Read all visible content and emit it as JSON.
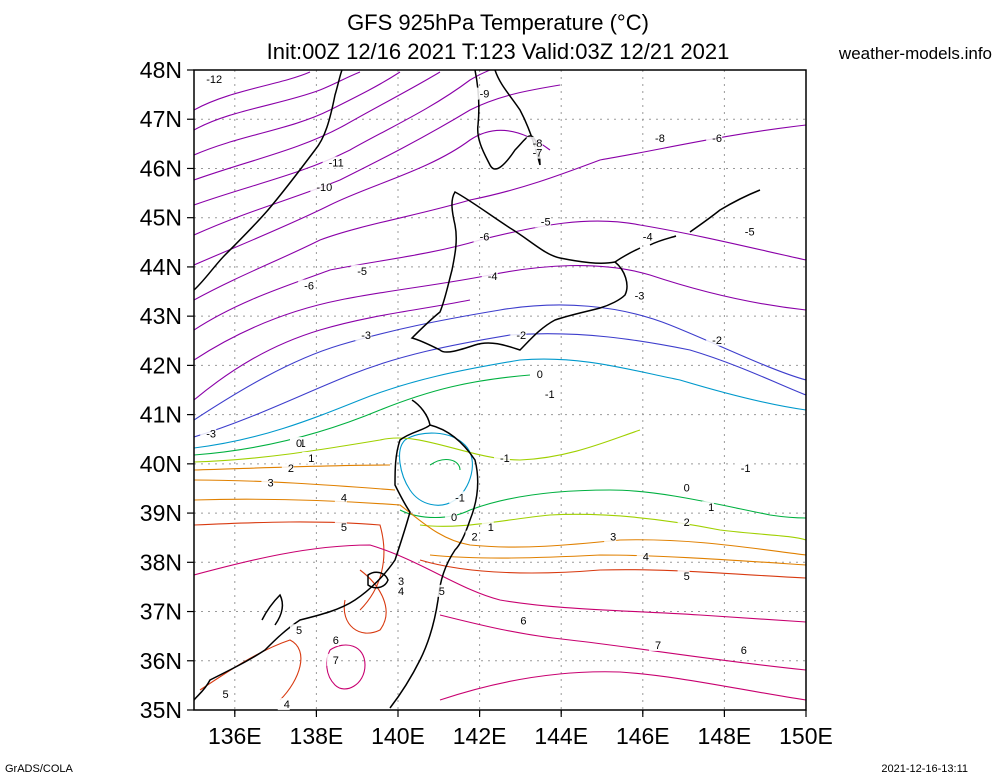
{
  "header": {
    "title_line1": "GFS 925hPa Temperature (°C)",
    "title_line2": "Init:00Z 12/16 2021 T:123 Valid:03Z 12/21 2021",
    "site": "weather-models.info"
  },
  "footer": {
    "software": "GrADS/COLA",
    "generated": "2021-12-16-13:11"
  },
  "map": {
    "lat_range": [
      35,
      48
    ],
    "lon_range": [
      135,
      150
    ],
    "lat_labels": [
      "35N",
      "36N",
      "37N",
      "38N",
      "39N",
      "40N",
      "41N",
      "42N",
      "43N",
      "44N",
      "45N",
      "46N",
      "47N",
      "48N"
    ],
    "lon_labels": [
      "136E",
      "138E",
      "140E",
      "142E",
      "144E",
      "146E",
      "148E",
      "150E"
    ],
    "variable": "925hPa Temperature (°C)",
    "colors": {
      "very_cold": "#8a00a8",
      "cold": "#3d3dcc",
      "cool": "#0099cc",
      "zero": "#00b040",
      "mild": "#a0d000",
      "warm": "#e08000",
      "warmer": "#d83a10",
      "hot": "#c80070",
      "coast": "#000000",
      "grid": "#9a9a9a"
    },
    "contour_labels": [
      {
        "text": "-12",
        "lon": 135.3,
        "lat": 47.8
      },
      {
        "text": "-11",
        "lon": 138.3,
        "lat": 46.1
      },
      {
        "text": "-10",
        "lon": 138.0,
        "lat": 45.6
      },
      {
        "text": "-9",
        "lon": 142.0,
        "lat": 47.5
      },
      {
        "text": "-8",
        "lon": 146.3,
        "lat": 46.6
      },
      {
        "text": "-8",
        "lon": 143.3,
        "lat": 46.5
      },
      {
        "text": "-7",
        "lon": 143.3,
        "lat": 46.3
      },
      {
        "text": "-6",
        "lon": 147.7,
        "lat": 46.6
      },
      {
        "text": "-6",
        "lon": 137.7,
        "lat": 43.6
      },
      {
        "text": "-6",
        "lon": 142.0,
        "lat": 44.6
      },
      {
        "text": "-5",
        "lon": 139.0,
        "lat": 43.9
      },
      {
        "text": "-5",
        "lon": 143.5,
        "lat": 44.9
      },
      {
        "text": "-5",
        "lon": 148.5,
        "lat": 44.7
      },
      {
        "text": "-4",
        "lon": 142.2,
        "lat": 43.8
      },
      {
        "text": "-4",
        "lon": 146.0,
        "lat": 44.6
      },
      {
        "text": "-3",
        "lon": 139.1,
        "lat": 42.6
      },
      {
        "text": "-3",
        "lon": 145.8,
        "lat": 43.4
      },
      {
        "text": "-3",
        "lon": 135.3,
        "lat": 40.6
      },
      {
        "text": "-2",
        "lon": 142.9,
        "lat": 42.6
      },
      {
        "text": "-2",
        "lon": 147.7,
        "lat": 42.5
      },
      {
        "text": "-1",
        "lon": 143.6,
        "lat": 41.4
      },
      {
        "text": "-1",
        "lon": 137.5,
        "lat": 40.4
      },
      {
        "text": "-1",
        "lon": 141.4,
        "lat": 39.3
      },
      {
        "text": "-1",
        "lon": 142.5,
        "lat": 40.1
      },
      {
        "text": "-1",
        "lon": 148.4,
        "lat": 39.9
      },
      {
        "text": "0",
        "lon": 137.5,
        "lat": 40.4
      },
      {
        "text": "0",
        "lon": 143.4,
        "lat": 41.8
      },
      {
        "text": "0",
        "lon": 141.3,
        "lat": 38.9
      },
      {
        "text": "0",
        "lon": 147.0,
        "lat": 39.5
      },
      {
        "text": "1",
        "lon": 137.8,
        "lat": 40.1
      },
      {
        "text": "1",
        "lon": 142.2,
        "lat": 38.7
      },
      {
        "text": "1",
        "lon": 147.6,
        "lat": 39.1
      },
      {
        "text": "2",
        "lon": 137.3,
        "lat": 39.9
      },
      {
        "text": "2",
        "lon": 141.8,
        "lat": 38.5
      },
      {
        "text": "2",
        "lon": 147.0,
        "lat": 38.8
      },
      {
        "text": "3",
        "lon": 136.8,
        "lat": 39.6
      },
      {
        "text": "3",
        "lon": 145.2,
        "lat": 38.5
      },
      {
        "text": "3",
        "lon": 140.0,
        "lat": 37.6
      },
      {
        "text": "4",
        "lon": 138.6,
        "lat": 39.3
      },
      {
        "text": "4",
        "lon": 146.0,
        "lat": 38.1
      },
      {
        "text": "4",
        "lon": 140.0,
        "lat": 37.4
      },
      {
        "text": "4",
        "lon": 137.2,
        "lat": 35.1
      },
      {
        "text": "5",
        "lon": 138.6,
        "lat": 38.7
      },
      {
        "text": "5",
        "lon": 147.0,
        "lat": 37.7
      },
      {
        "text": "5",
        "lon": 141.0,
        "lat": 37.4
      },
      {
        "text": "5",
        "lon": 137.5,
        "lat": 36.6
      },
      {
        "text": "5",
        "lon": 135.7,
        "lat": 35.3
      },
      {
        "text": "6",
        "lon": 143.0,
        "lat": 36.8
      },
      {
        "text": "6",
        "lon": 148.4,
        "lat": 36.2
      },
      {
        "text": "6",
        "lon": 138.4,
        "lat": 36.4
      },
      {
        "text": "7",
        "lon": 146.3,
        "lat": 36.3
      },
      {
        "text": "7",
        "lon": 138.4,
        "lat": 36.0
      }
    ]
  }
}
